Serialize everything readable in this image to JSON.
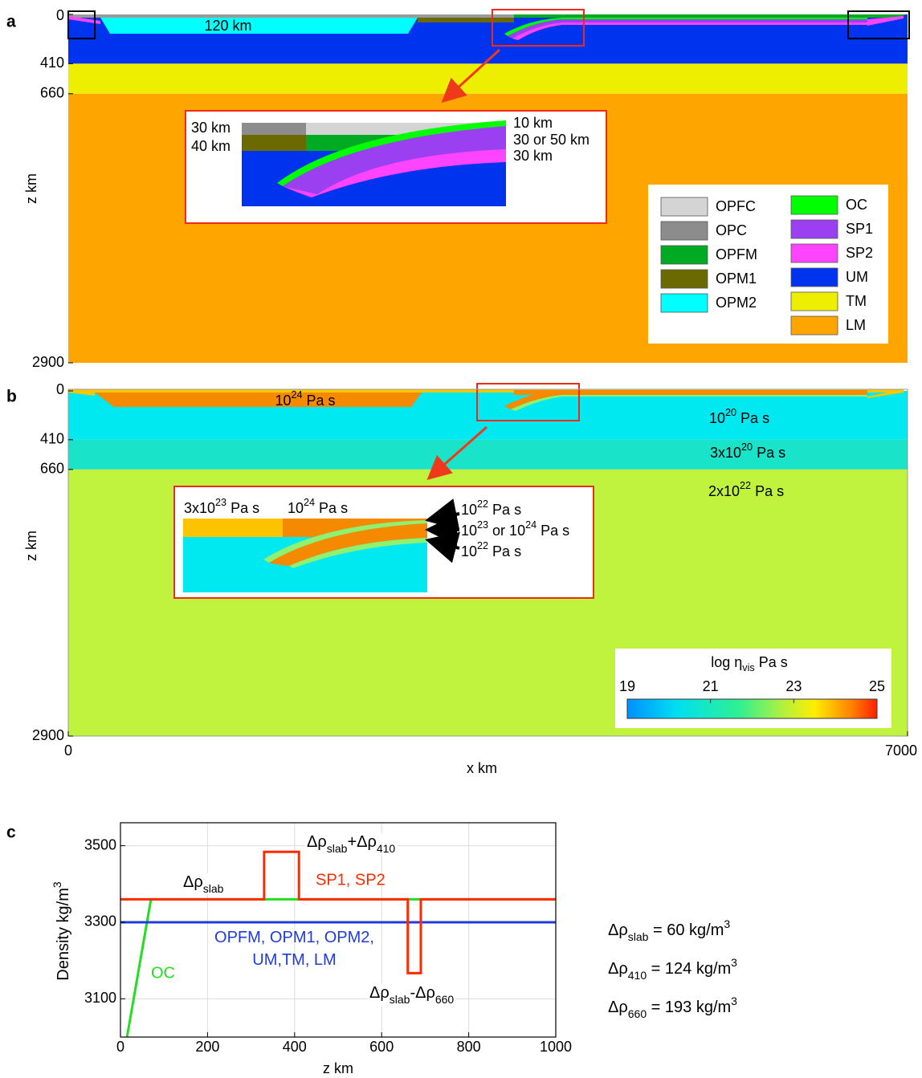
{
  "panel_a": {
    "label": "a",
    "y_label": "z km",
    "ylim": [
      0,
      2900
    ],
    "yticks": [
      0,
      410,
      660,
      2900
    ],
    "annotation": "120 km",
    "inset_labels": [
      "30 km",
      "40 km",
      "10 km",
      "30 or 50 km",
      "30 km"
    ],
    "legend": [
      {
        "name": "OPFC",
        "color": "#d4d4d4"
      },
      {
        "name": "OPC",
        "color": "#8c8c8c"
      },
      {
        "name": "OPFM",
        "color": "#00aa22"
      },
      {
        "name": "OPM1",
        "color": "#6b6a00"
      },
      {
        "name": "OPM2",
        "color": "#00ffff"
      },
      {
        "name": "OC",
        "color": "#00ff00"
      },
      {
        "name": "SP1",
        "color": "#9b40f0"
      },
      {
        "name": "SP2",
        "color": "#ff44ff"
      },
      {
        "name": "UM",
        "color": "#0033ee"
      },
      {
        "name": "TM",
        "color": "#eeee00"
      },
      {
        "name": "LM",
        "color": "#ffa500"
      }
    ]
  },
  "panel_b": {
    "label": "b",
    "y_label": "z km",
    "x_label": "x km",
    "ylim": [
      0,
      2900
    ],
    "yticks": [
      0,
      410,
      660,
      2900
    ],
    "xlim": [
      0,
      7000
    ],
    "xticks": [
      0,
      7000
    ],
    "annotations": [
      [
        {
          "text": "10"
        },
        {
          "sup": "24"
        },
        {
          "text": " Pa s"
        }
      ],
      [
        {
          "text": "10"
        },
        {
          "sup": "20"
        },
        {
          "text": " Pa s"
        }
      ],
      [
        {
          "text": "3x10"
        },
        {
          "sup": "20"
        },
        {
          "text": " Pa s"
        }
      ],
      [
        {
          "text": "2x10"
        },
        {
          "sup": "22"
        },
        {
          "text": " Pa s"
        }
      ]
    ],
    "inset_labels": [
      [
        {
          "text": "3x10"
        },
        {
          "sup": "23"
        },
        {
          "text": " Pa s"
        }
      ],
      [
        {
          "text": "10"
        },
        {
          "sup": "24"
        },
        {
          "text": " Pa s"
        }
      ],
      [
        {
          "text": "10"
        },
        {
          "sup": "22"
        },
        {
          "text": " Pa s"
        }
      ],
      [
        {
          "text": "10"
        },
        {
          "sup": "23"
        },
        {
          "text": " or 10"
        },
        {
          "sup": "24"
        },
        {
          "text": " Pa s"
        }
      ],
      [
        {
          "text": "10"
        },
        {
          "sup": "22"
        },
        {
          "text": " Pa s"
        }
      ]
    ],
    "colorbar": {
      "title": [
        {
          "text": "log η"
        },
        {
          "sub": "vis"
        },
        {
          "text": " Pa s"
        }
      ],
      "lim": [
        19,
        25
      ],
      "ticks": [
        19,
        21,
        23,
        25
      ]
    }
  },
  "chart_data": {
    "type": "line",
    "panel_label": "c",
    "x_label": "z km",
    "y_label": [
      {
        "text": "Density kg/m"
      },
      {
        "sup": "3"
      }
    ],
    "xlim": [
      0,
      1000
    ],
    "xticks": [
      0,
      200,
      400,
      600,
      800,
      1000
    ],
    "ylim": [
      3000,
      3560
    ],
    "yticks": [
      3100,
      3300,
      3500
    ],
    "grid": true,
    "series": [
      {
        "name": "SP1, SP2",
        "color": "#ff2a00",
        "x": [
          0,
          330,
          330,
          410,
          410,
          660,
          660,
          690,
          690,
          1000
        ],
        "values": [
          3360,
          3360,
          3484,
          3484,
          3360,
          3360,
          3167,
          3167,
          3360,
          3360
        ]
      },
      {
        "name": "OC",
        "color": "#22dd22",
        "x": [
          15,
          70,
          1000
        ],
        "values": [
          3000,
          3360,
          3360
        ]
      },
      {
        "name": "OPFM, OPM1, OPM2, UM,TM, LM",
        "color": "#1f3bdc",
        "x": [
          0,
          1000
        ],
        "values": [
          3300,
          3300
        ]
      }
    ],
    "annotations": [
      [
        {
          "text": "Δρ"
        },
        {
          "sub": "slab"
        }
      ],
      [
        {
          "text": "Δρ"
        },
        {
          "sub": "slab"
        },
        {
          "text": "+Δρ"
        },
        {
          "sub": "410"
        }
      ],
      [
        {
          "text": "Δρ"
        },
        {
          "sub": "slab"
        },
        {
          "text": "-Δρ"
        },
        {
          "sub": "660"
        }
      ]
    ],
    "equations": [
      [
        {
          "text": "Δρ"
        },
        {
          "sub": "slab"
        },
        {
          "text": " = 60 kg/m"
        },
        {
          "sup": "3"
        }
      ],
      [
        {
          "text": "Δρ"
        },
        {
          "sub": "410"
        },
        {
          "text": " = 124 kg/m"
        },
        {
          "sup": "3"
        }
      ],
      [
        {
          "text": "Δρ"
        },
        {
          "sub": "660"
        },
        {
          "text": " = 193 kg/m"
        },
        {
          "sup": "3"
        }
      ]
    ]
  }
}
